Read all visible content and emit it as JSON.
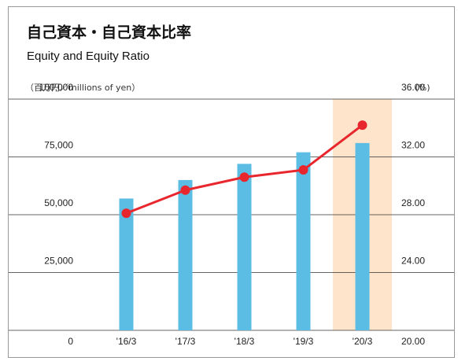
{
  "chart_data": {
    "type": "combo",
    "title": "自己資本・自己資本比率",
    "subtitle": "Equity and Equity Ratio",
    "y_label": "（百万円／millions of yen）",
    "y2_label": "(%)",
    "categories": [
      "'16/3",
      "'17/3",
      "'18/3",
      "'19/3",
      "'20/3"
    ],
    "series": [
      {
        "name": "Equity",
        "type": "bar",
        "color": "#5bbde3",
        "values": [
          57000,
          65000,
          72000,
          77000,
          81000
        ]
      },
      {
        "name": "Equity Ratio",
        "type": "line",
        "axis": "y2",
        "color": "#e8262d",
        "values": [
          28.1,
          29.7,
          30.6,
          31.1,
          34.2
        ]
      }
    ],
    "ylim": [
      0,
      100000
    ],
    "yticks": [
      0,
      {
        "value": 25000,
        "label": "25,000"
      },
      {
        "value": 50000,
        "label": "50,000"
      },
      {
        "value": 75000,
        "label": "75,000"
      },
      {
        "value": 100000,
        "label": "100,000"
      }
    ],
    "y2lim": [
      20,
      36
    ],
    "y2ticks": [
      {
        "value": 20,
        "label": "20.00"
      },
      {
        "value": 24,
        "label": "24.00"
      },
      {
        "value": 28,
        "label": "28.00"
      },
      {
        "value": 32,
        "label": "32.00"
      },
      {
        "value": 36,
        "label": "36.00"
      }
    ],
    "grid": true,
    "highlight": {
      "index": 4,
      "color": "#fde4cb"
    }
  }
}
